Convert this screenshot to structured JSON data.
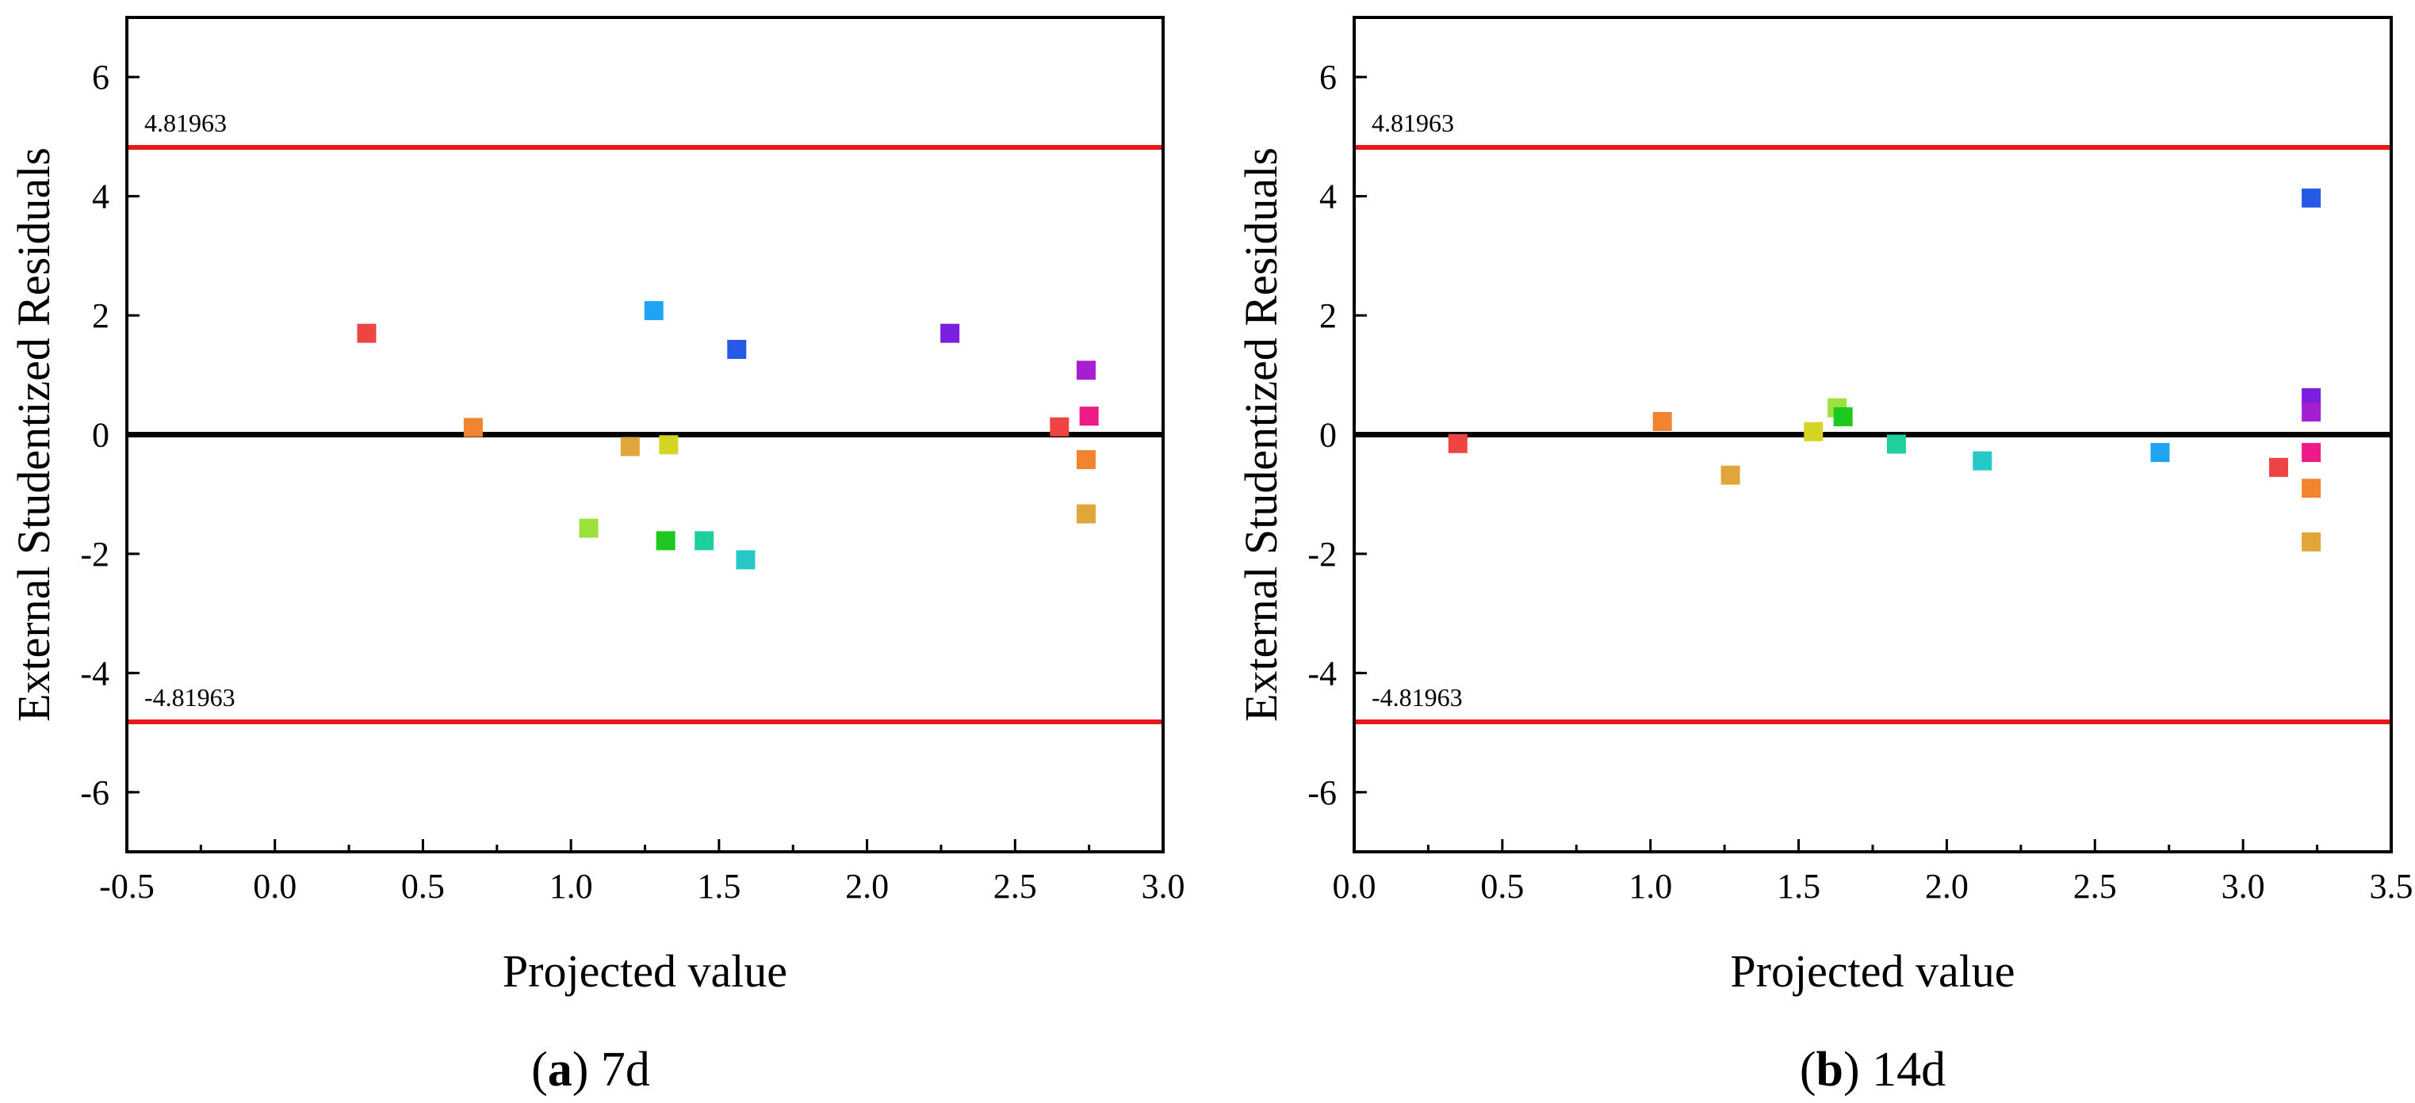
{
  "charts": [
    {
      "panel_letter": "a",
      "panel_suffix": "7d",
      "chart_data": {
        "type": "scatter",
        "title": "",
        "xlabel": "Projected value",
        "ylabel": "External Studentized Residuals",
        "xlim": [
          -0.5,
          3.0
        ],
        "ylim": [
          -7,
          7
        ],
        "xticks": [
          "-0.5",
          "0.0",
          "0.5",
          "1.0",
          "1.5",
          "2.0",
          "2.5",
          "3.0"
        ],
        "yticks": [
          "-6",
          "-4",
          "-2",
          "0",
          "2",
          "4",
          "6"
        ],
        "reference_lines": [
          {
            "y": 4.81963,
            "label": "4.81963",
            "color": "#e8191b"
          },
          {
            "y": -4.81963,
            "label": "-4.81963",
            "color": "#e8191b"
          },
          {
            "y": 0,
            "label": "",
            "color": "#000000"
          }
        ],
        "points": [
          {
            "x": 0.31,
            "y": 1.7,
            "color": "#ef4444"
          },
          {
            "x": 0.67,
            "y": 0.12,
            "color": "#f0842f"
          },
          {
            "x": 1.06,
            "y": -1.57,
            "color": "#9be23c"
          },
          {
            "x": 1.2,
            "y": -0.2,
            "color": "#e0a63a"
          },
          {
            "x": 1.28,
            "y": 2.08,
            "color": "#1ea4f2"
          },
          {
            "x": 1.32,
            "y": -1.78,
            "color": "#1fc81f"
          },
          {
            "x": 1.33,
            "y": -0.17,
            "color": "#d4d423"
          },
          {
            "x": 1.45,
            "y": -1.78,
            "color": "#1fcf9e"
          },
          {
            "x": 1.56,
            "y": 1.43,
            "color": "#2659e6"
          },
          {
            "x": 1.59,
            "y": -2.1,
            "color": "#25c7c7"
          },
          {
            "x": 2.28,
            "y": 1.7,
            "color": "#7a1fe0"
          },
          {
            "x": 2.65,
            "y": 0.13,
            "color": "#ef4444"
          },
          {
            "x": 2.74,
            "y": 1.08,
            "color": "#a51fd1"
          },
          {
            "x": 2.75,
            "y": 0.31,
            "color": "#ef1a87"
          },
          {
            "x": 2.74,
            "y": -0.42,
            "color": "#f0842f"
          },
          {
            "x": 2.74,
            "y": -1.33,
            "color": "#e0a63a"
          }
        ]
      }
    },
    {
      "panel_letter": "b",
      "panel_suffix": "14d",
      "chart_data": {
        "type": "scatter",
        "title": "",
        "xlabel": "Projected value",
        "ylabel": "External Studentized Residuals",
        "xlim": [
          0.0,
          3.5
        ],
        "ylim": [
          -7,
          7
        ],
        "xticks": [
          "0.0",
          "0.5",
          "1.0",
          "1.5",
          "2.0",
          "2.5",
          "3.0",
          "3.5"
        ],
        "yticks": [
          "-6",
          "-4",
          "-2",
          "0",
          "2",
          "4",
          "6"
        ],
        "reference_lines": [
          {
            "y": 4.81963,
            "label": "4.81963",
            "color": "#e8191b"
          },
          {
            "y": -4.81963,
            "label": "-4.81963",
            "color": "#e8191b"
          },
          {
            "y": 0,
            "label": "",
            "color": "#000000"
          }
        ],
        "points": [
          {
            "x": 0.35,
            "y": -0.15,
            "color": "#ef4444"
          },
          {
            "x": 1.04,
            "y": 0.22,
            "color": "#f0842f"
          },
          {
            "x": 1.27,
            "y": -0.68,
            "color": "#e0a63a"
          },
          {
            "x": 1.55,
            "y": 0.05,
            "color": "#d4d423"
          },
          {
            "x": 1.63,
            "y": 0.45,
            "color": "#9be23c"
          },
          {
            "x": 1.65,
            "y": 0.3,
            "color": "#1fc81f"
          },
          {
            "x": 1.83,
            "y": -0.16,
            "color": "#1fcf9e"
          },
          {
            "x": 2.12,
            "y": -0.44,
            "color": "#25c7c7"
          },
          {
            "x": 2.72,
            "y": -0.3,
            "color": "#1ea4f2"
          },
          {
            "x": 3.12,
            "y": -0.55,
            "color": "#ef4444"
          },
          {
            "x": 3.23,
            "y": 3.97,
            "color": "#2659e6"
          },
          {
            "x": 3.23,
            "y": 0.62,
            "color": "#7a1fe0"
          },
          {
            "x": 3.23,
            "y": 0.38,
            "color": "#a51fd1"
          },
          {
            "x": 3.23,
            "y": -0.3,
            "color": "#ef1a87"
          },
          {
            "x": 3.23,
            "y": -0.9,
            "color": "#f0842f"
          },
          {
            "x": 3.23,
            "y": -1.8,
            "color": "#e0a63a"
          }
        ]
      }
    }
  ]
}
